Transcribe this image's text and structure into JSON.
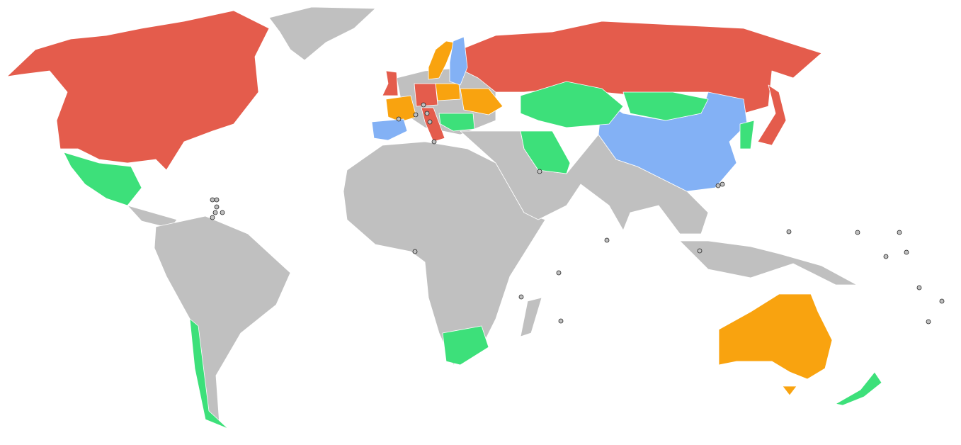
{
  "map": {
    "colors": [
      "#e45c4c",
      "#f9a30f",
      "#83b1f5",
      "#3de07a",
      "#c0c0c0"
    ]
  }
}
